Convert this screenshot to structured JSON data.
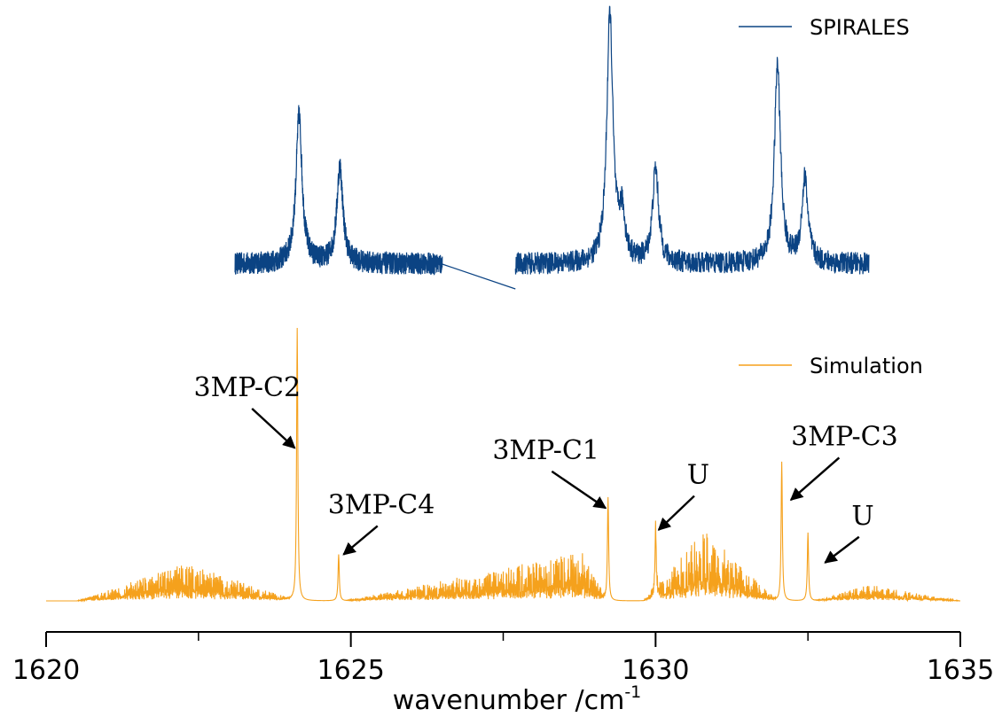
{
  "chart_data": {
    "type": "line",
    "xlabel": "wavenumber /cm",
    "xlabel_superscript": "-1",
    "xlim": [
      1620,
      1635
    ],
    "xticks": [
      {
        "value": 1620,
        "label": "1620"
      },
      {
        "value": 1625,
        "label": "1625"
      },
      {
        "value": 1630,
        "label": "1630"
      },
      {
        "value": 1635,
        "label": "1635"
      }
    ],
    "minor_ticks": [
      1622.5,
      1627.5,
      1632.5
    ],
    "grid": false,
    "y_axis_shown": false,
    "series": [
      {
        "name": "SPIRALES",
        "color": "#0b4383",
        "noise": 0.045,
        "baseline": 0.0,
        "segments": [
          [
            1623.1,
            1626.5
          ],
          [
            1627.7,
            1633.5
          ]
        ],
        "connector": [
          [
            1626.5,
            0.0
          ],
          [
            1627.7,
            -0.1
          ]
        ],
        "peaks": [
          {
            "x": 1624.15,
            "y": 0.6
          },
          {
            "x": 1624.82,
            "y": 0.39
          },
          {
            "x": 1629.25,
            "y": 1.0
          },
          {
            "x": 1629.45,
            "y": 0.18
          },
          {
            "x": 1630.0,
            "y": 0.38
          },
          {
            "x": 1632.0,
            "y": 0.8
          },
          {
            "x": 1632.45,
            "y": 0.34
          }
        ],
        "legend_position": "top-right"
      },
      {
        "name": "Simulation",
        "color": "#f5a11c",
        "baseline": 0.0,
        "peaks": [
          {
            "x": 1624.12,
            "y": 1.0
          },
          {
            "x": 1624.8,
            "y": 0.17
          },
          {
            "x": 1629.22,
            "y": 0.38
          },
          {
            "x": 1630.0,
            "y": 0.25
          },
          {
            "x": 1632.07,
            "y": 0.51
          },
          {
            "x": 1632.5,
            "y": 0.25
          }
        ],
        "envelopes": [
          {
            "from": 1620.5,
            "to": 1624.1,
            "peak_x": 1622.3,
            "max": 0.14
          },
          {
            "from": 1624.9,
            "to": 1629.2,
            "peak_x": 1628.8,
            "max": 0.18
          },
          {
            "from": 1629.8,
            "to": 1632.0,
            "peak_x": 1630.8,
            "max": 0.26
          },
          {
            "from": 1632.6,
            "to": 1635.0,
            "peak_x": 1633.5,
            "max": 0.06
          }
        ],
        "legend_position": "right"
      }
    ],
    "annotations": [
      {
        "text": "3MP-C2",
        "label_x": 1623.3,
        "label_y": 0.75,
        "arrow_to": [
          1624.08,
          0.56
        ]
      },
      {
        "text": "3MP-C4",
        "label_x": 1625.5,
        "label_y": 0.32,
        "arrow_to": [
          1624.88,
          0.17
        ]
      },
      {
        "text": "3MP-C1",
        "label_x": 1628.2,
        "label_y": 0.52,
        "arrow_to": [
          1629.18,
          0.34
        ]
      },
      {
        "text": "U",
        "label_x": 1630.7,
        "label_y": 0.43,
        "arrow_to": [
          1630.05,
          0.26
        ]
      },
      {
        "text": "3MP-C3",
        "label_x": 1633.1,
        "label_y": 0.57,
        "arrow_to": [
          1632.22,
          0.37
        ]
      },
      {
        "text": "U",
        "label_x": 1633.4,
        "label_y": 0.28,
        "arrow_to": [
          1632.78,
          0.14
        ]
      }
    ]
  }
}
